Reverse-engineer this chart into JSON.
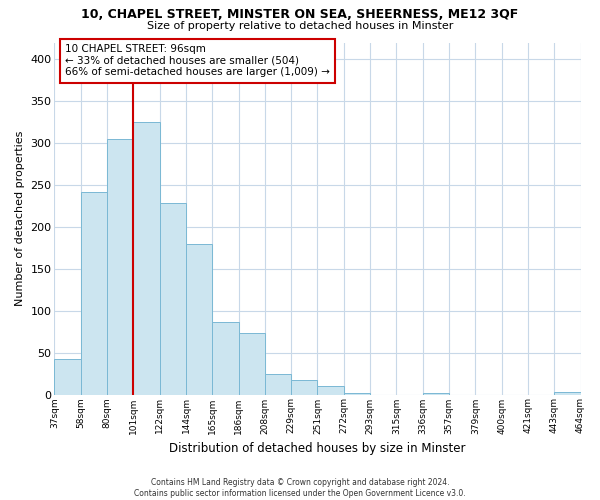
{
  "title": "10, CHAPEL STREET, MINSTER ON SEA, SHEERNESS, ME12 3QF",
  "subtitle": "Size of property relative to detached houses in Minster",
  "xlabel": "Distribution of detached houses by size in Minster",
  "ylabel": "Number of detached properties",
  "bar_values": [
    42,
    242,
    305,
    325,
    228,
    180,
    87,
    73,
    25,
    17,
    10,
    2,
    0,
    0,
    2,
    0,
    0,
    0,
    0,
    3
  ],
  "bar_labels": [
    "37sqm",
    "58sqm",
    "80sqm",
    "101sqm",
    "122sqm",
    "144sqm",
    "165sqm",
    "186sqm",
    "208sqm",
    "229sqm",
    "251sqm",
    "272sqm",
    "293sqm",
    "315sqm",
    "336sqm",
    "357sqm",
    "379sqm",
    "400sqm",
    "421sqm",
    "443sqm",
    "464sqm"
  ],
  "bar_color": "#cce5f0",
  "bar_edge_color": "#7ab8d4",
  "marker_line_color": "#cc0000",
  "ylim": [
    0,
    420
  ],
  "yticks": [
    0,
    50,
    100,
    150,
    200,
    250,
    300,
    350,
    400
  ],
  "annotation_title": "10 CHAPEL STREET: 96sqm",
  "annotation_line1": "← 33% of detached houses are smaller (504)",
  "annotation_line2": "66% of semi-detached houses are larger (1,009) →",
  "annotation_box_color": "#ffffff",
  "annotation_box_edge": "#cc0000",
  "footer_line1": "Contains HM Land Registry data © Crown copyright and database right 2024.",
  "footer_line2": "Contains public sector information licensed under the Open Government Licence v3.0.",
  "background_color": "#ffffff",
  "grid_color": "#c8d8e8"
}
